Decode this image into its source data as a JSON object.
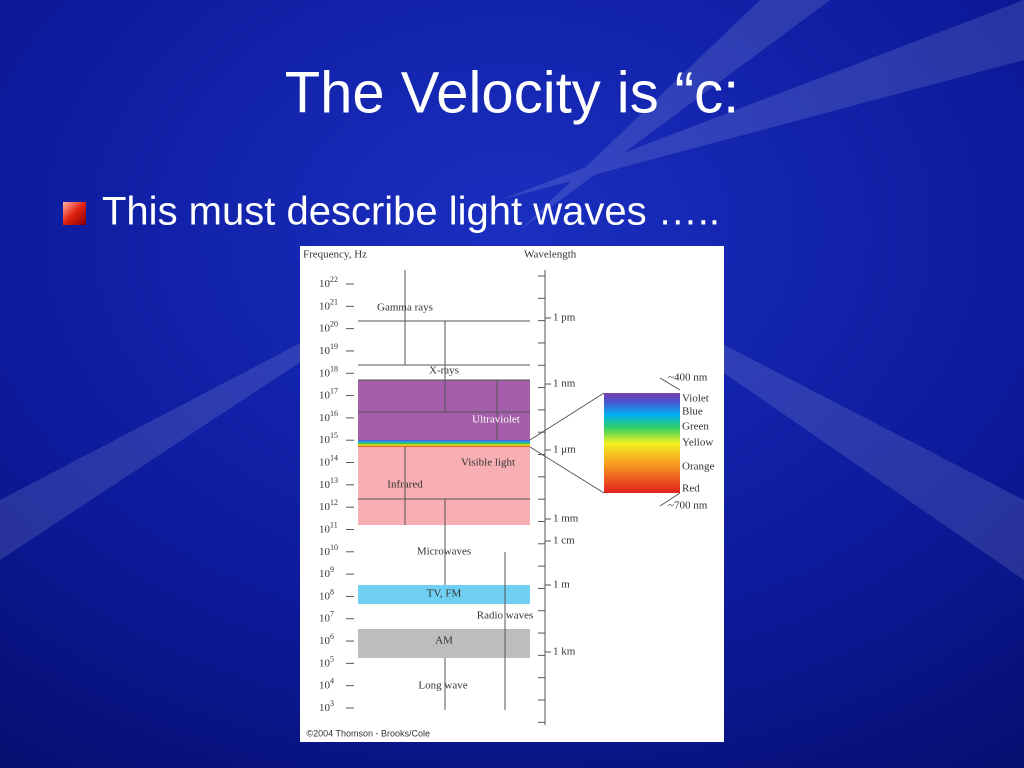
{
  "title": "The Velocity is “c:",
  "bullets": [
    "This must describe light waves ….."
  ],
  "figure": {
    "frequency_label": "Frequency, Hz",
    "wavelength_label": "Wavelength",
    "frequency_ticks": [
      {
        "base": "10",
        "exp": "22"
      },
      {
        "base": "10",
        "exp": "21"
      },
      {
        "base": "10",
        "exp": "20"
      },
      {
        "base": "10",
        "exp": "19"
      },
      {
        "base": "10",
        "exp": "18"
      },
      {
        "base": "10",
        "exp": "17"
      },
      {
        "base": "10",
        "exp": "16"
      },
      {
        "base": "10",
        "exp": "15"
      },
      {
        "base": "10",
        "exp": "14"
      },
      {
        "base": "10",
        "exp": "13"
      },
      {
        "base": "10",
        "exp": "12"
      },
      {
        "base": "10",
        "exp": "11"
      },
      {
        "base": "10",
        "exp": "10"
      },
      {
        "base": "10",
        "exp": "9"
      },
      {
        "base": "10",
        "exp": "8"
      },
      {
        "base": "10",
        "exp": "7"
      },
      {
        "base": "10",
        "exp": "6"
      },
      {
        "base": "10",
        "exp": "5"
      },
      {
        "base": "10",
        "exp": "4"
      },
      {
        "base": "10",
        "exp": "3"
      }
    ],
    "wavelength_labels": [
      "1 pm",
      "1 nm",
      "1 μm",
      "1 mm",
      "1 cm",
      "1 m",
      "1 km"
    ],
    "bands": [
      "Gamma rays",
      "X-rays",
      "Ultraviolet",
      "Visible light",
      "Infrared",
      "Microwaves",
      "TV, FM",
      "Radio waves",
      "AM",
      "Long wave"
    ],
    "visible": {
      "top": "~400 nm",
      "colors": [
        "Violet",
        "Blue",
        "Green",
        "Yellow",
        "Orange",
        "Red"
      ],
      "bottom": "~700 nm"
    },
    "credit": "©2004 Thomson - Brooks/Cole"
  }
}
